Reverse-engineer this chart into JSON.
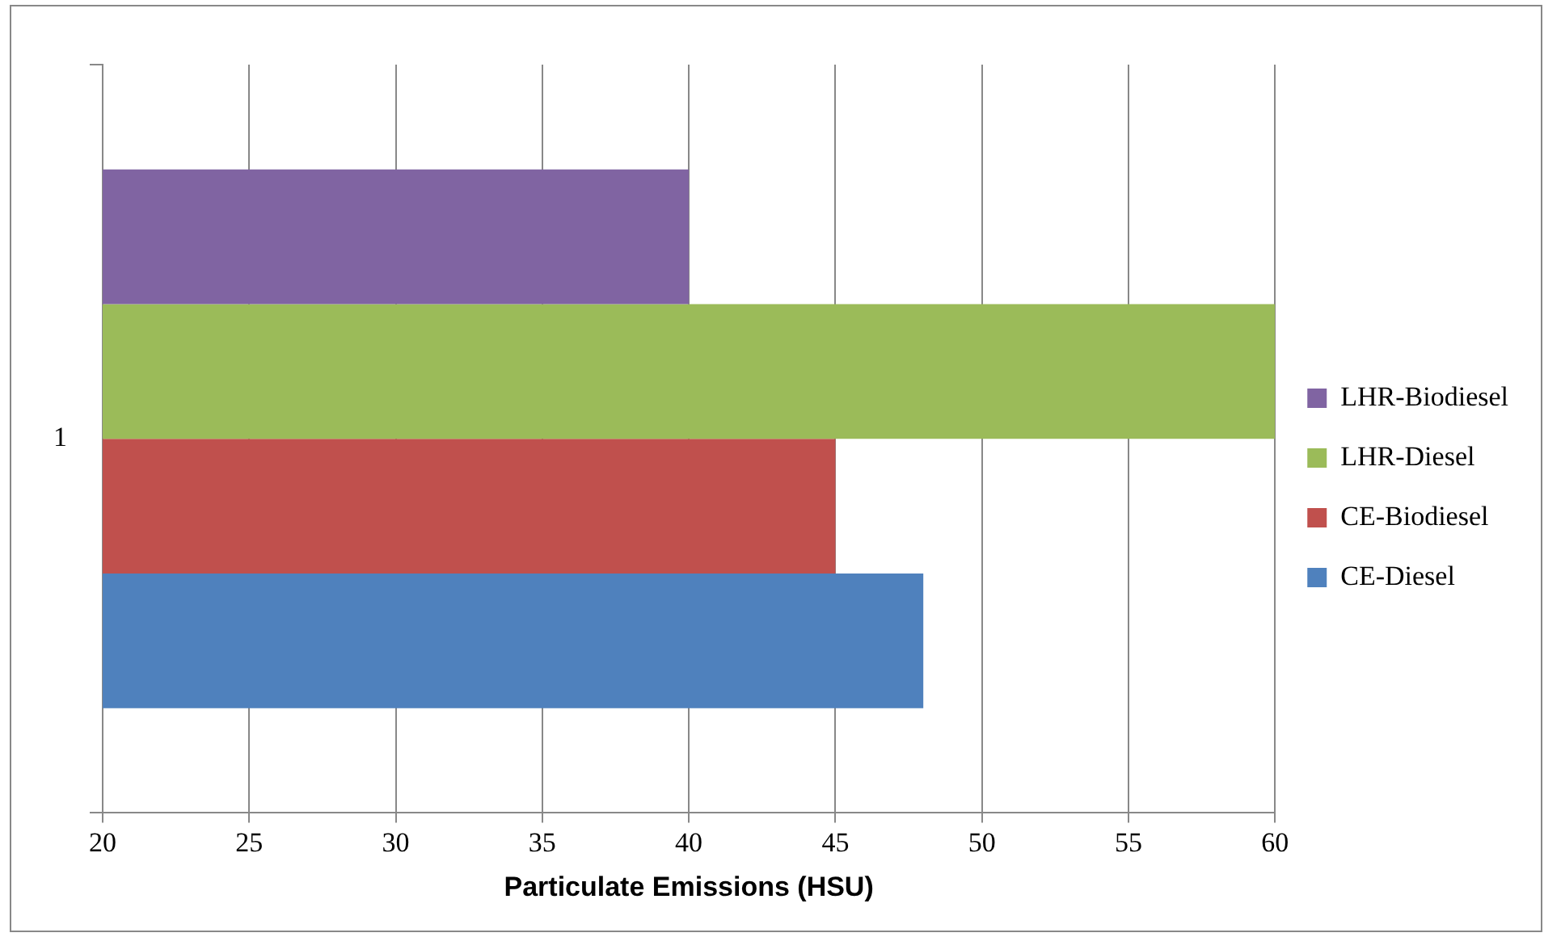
{
  "chart_data": {
    "type": "bar",
    "orientation": "horizontal",
    "categories": [
      "1"
    ],
    "series": [
      {
        "name": "LHR-Biodiesel",
        "color": "#8064a2",
        "values": [
          40
        ]
      },
      {
        "name": "LHR-Diesel",
        "color": "#9bbb59",
        "values": [
          60
        ]
      },
      {
        "name": "CE-Biodiesel",
        "color": "#c0504d",
        "values": [
          45
        ]
      },
      {
        "name": "CE-Diesel",
        "color": "#4f81bd",
        "values": [
          48
        ]
      }
    ],
    "xlabel": "Particulate Emissions (HSU)",
    "xlim": [
      20,
      60
    ],
    "xticks": [
      20,
      25,
      30,
      35,
      40,
      45,
      50,
      55,
      60
    ],
    "grid": "x",
    "legend": "right"
  }
}
